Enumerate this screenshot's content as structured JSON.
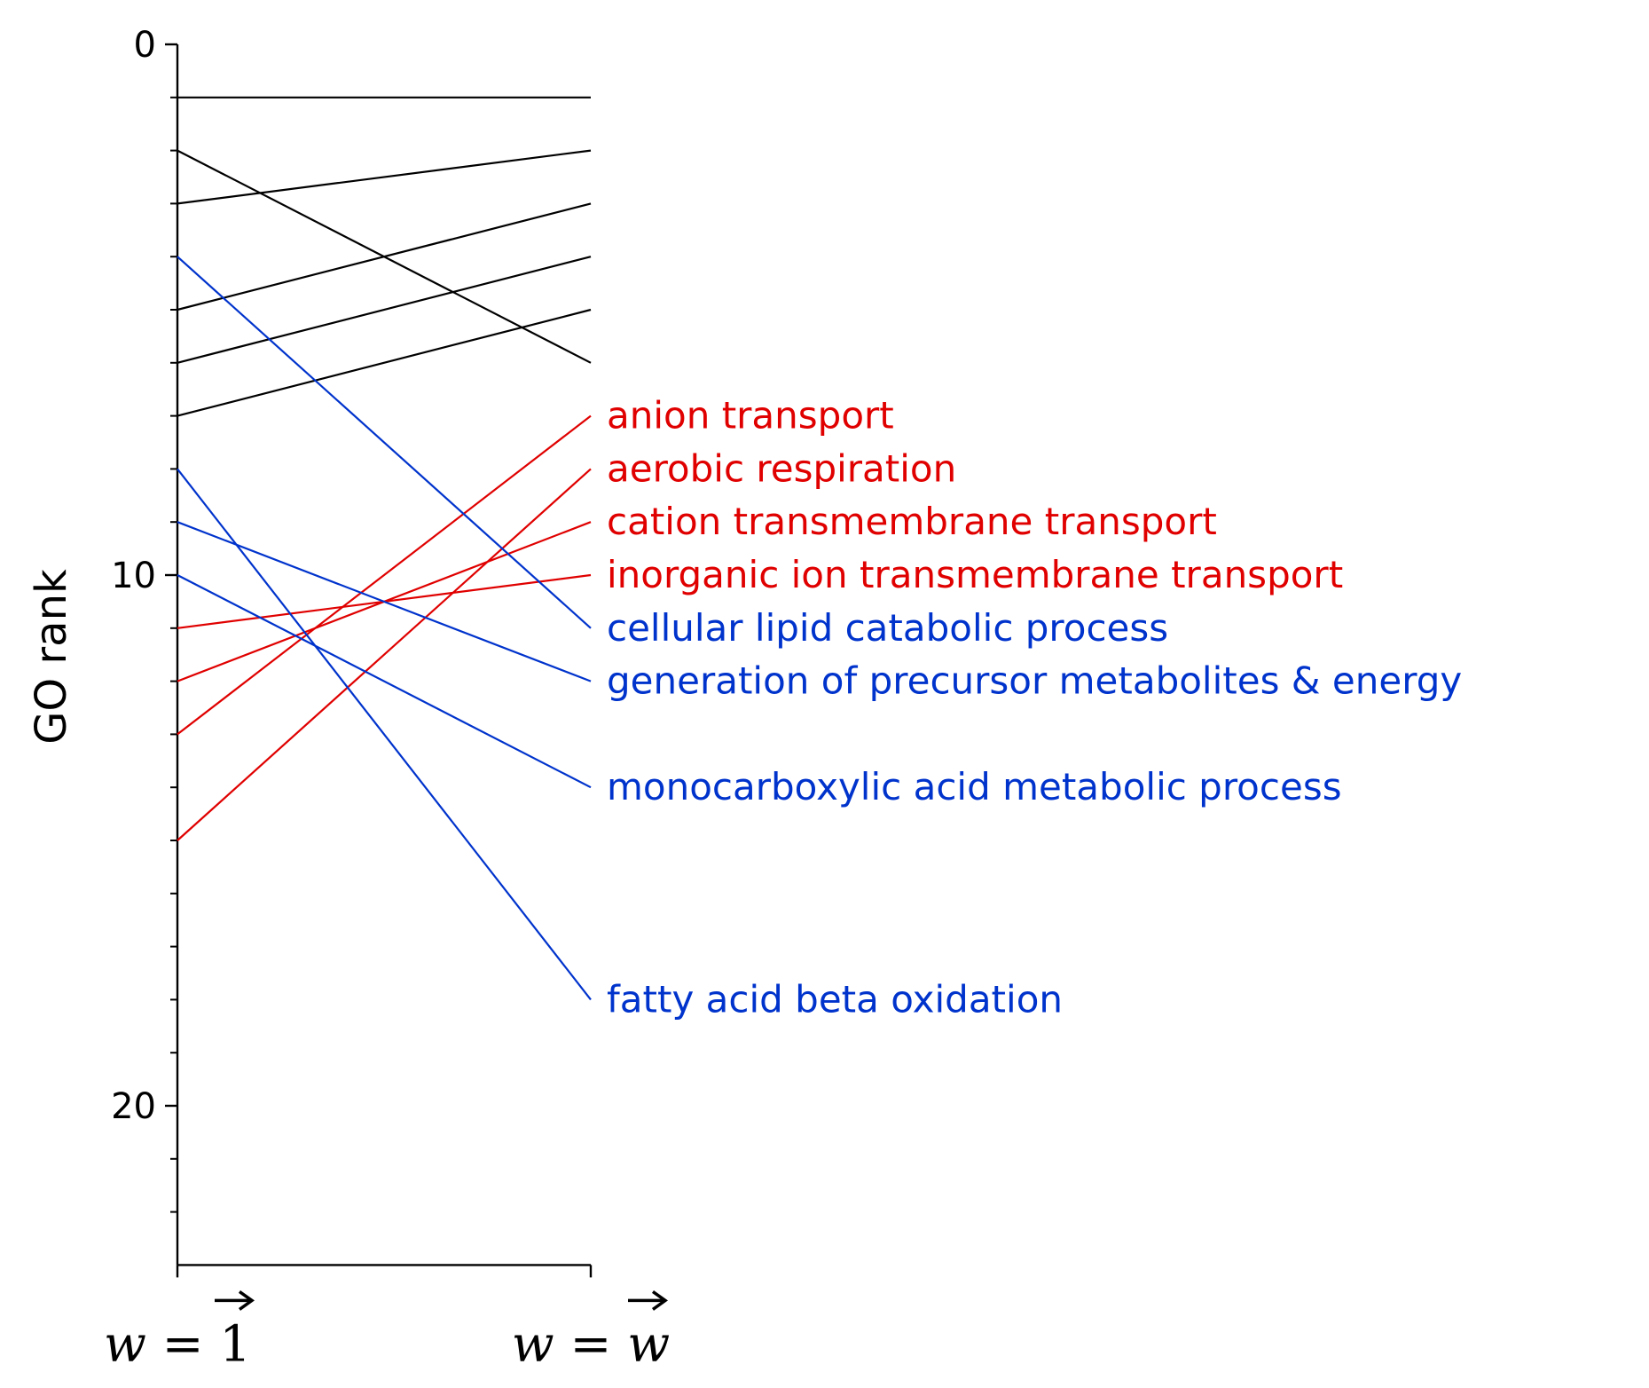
{
  "chart_data": {
    "type": "line",
    "title": "",
    "ylabel": "GO rank",
    "xlabel": "",
    "categories": [
      "w = 1⃗",
      "w = w⃗"
    ],
    "category_parts": [
      {
        "var": "w",
        "eq": "=",
        "val": "1"
      },
      {
        "var": "w",
        "eq": "=",
        "val": "w"
      }
    ],
    "ylim": [
      23,
      0
    ],
    "yticks_major": [
      0,
      10,
      20
    ],
    "ytick_labels": [
      "0",
      "10",
      "20"
    ],
    "yticks_minor": [
      1,
      2,
      3,
      4,
      5,
      6,
      7,
      8,
      9,
      11,
      12,
      13,
      14,
      15,
      16,
      17,
      18,
      19,
      21,
      22
    ],
    "colors": {
      "black": "#000000",
      "red": "#e00000",
      "blue": "#0033cc"
    },
    "series": [
      {
        "name": "",
        "color": "black",
        "values": [
          1,
          1
        ]
      },
      {
        "name": "",
        "color": "black",
        "values": [
          3,
          2
        ]
      },
      {
        "name": "",
        "color": "black",
        "values": [
          2,
          6
        ]
      },
      {
        "name": "",
        "color": "black",
        "values": [
          6,
          4
        ]
      },
      {
        "name": "",
        "color": "black",
        "values": [
          5,
          3
        ]
      },
      {
        "name": "",
        "color": "black",
        "values": [
          7,
          5
        ]
      },
      {
        "name": "anion transport",
        "color": "red",
        "values": [
          13,
          7
        ]
      },
      {
        "name": "aerobic respiration",
        "color": "red",
        "values": [
          15,
          8
        ]
      },
      {
        "name": "cation transmembrane transport",
        "color": "red",
        "values": [
          12,
          9
        ]
      },
      {
        "name": "inorganic ion transmembrane transport",
        "color": "red",
        "values": [
          11,
          10
        ]
      },
      {
        "name": "cellular lipid catabolic process",
        "color": "blue",
        "values": [
          4,
          11
        ]
      },
      {
        "name": "generation of precursor metabolites & energy",
        "color": "blue",
        "values": [
          9,
          12
        ]
      },
      {
        "name": "monocarboxylic acid metabolic process",
        "color": "blue",
        "values": [
          10,
          14
        ]
      },
      {
        "name": "fatty acid beta oxidation",
        "color": "blue",
        "values": [
          8,
          18
        ]
      }
    ]
  }
}
